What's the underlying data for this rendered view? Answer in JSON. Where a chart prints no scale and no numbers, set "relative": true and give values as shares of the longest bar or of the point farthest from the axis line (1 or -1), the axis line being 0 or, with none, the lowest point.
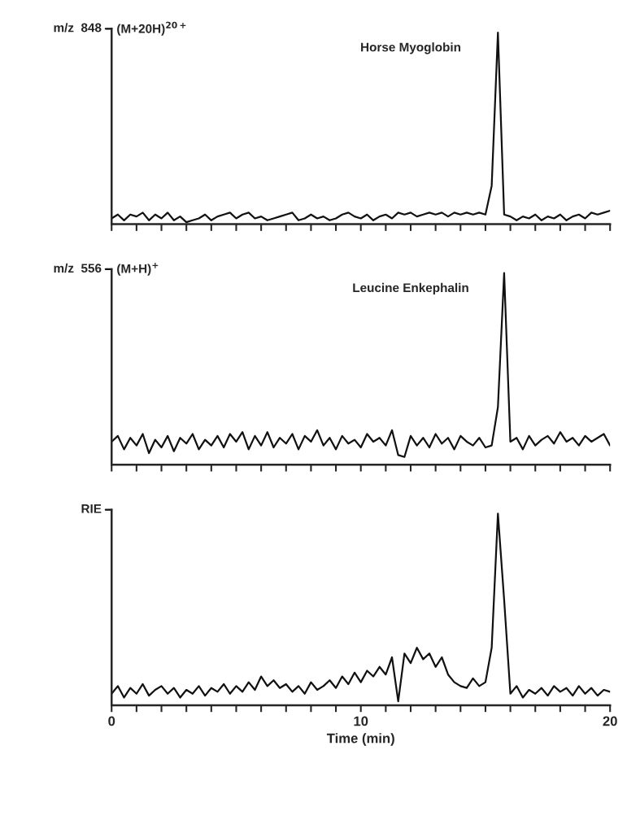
{
  "chart_data": [
    {
      "type": "line",
      "relative": true,
      "color": "#111111",
      "ylabel": "m/z  848",
      "annotations": [
        "(M+20H)$^{20+}$",
        "Horse Myoglobin"
      ],
      "xlim": [
        0,
        20
      ],
      "tick_labels": false,
      "xticks": [
        {
          "value": 0,
          "label": null
        },
        {
          "value": 1,
          "label": null
        },
        {
          "value": 2,
          "label": null
        },
        {
          "value": 3,
          "label": null
        },
        {
          "value": 4,
          "label": null
        },
        {
          "value": 5,
          "label": null
        },
        {
          "value": 6,
          "label": null
        },
        {
          "value": 7,
          "label": null
        },
        {
          "value": 8,
          "label": null
        },
        {
          "value": 9,
          "label": null
        },
        {
          "value": 10,
          "label": null
        },
        {
          "value": 11,
          "label": null
        },
        {
          "value": 12,
          "label": null
        },
        {
          "value": 13,
          "label": null
        },
        {
          "value": 14,
          "label": null
        },
        {
          "value": 15,
          "label": null
        },
        {
          "value": 16,
          "label": null
        },
        {
          "value": 17,
          "label": null
        },
        {
          "value": 18,
          "label": null
        },
        {
          "value": 19,
          "label": null
        },
        {
          "value": 20,
          "label": null
        }
      ],
      "x": [
        0,
        0.25,
        0.5,
        0.75,
        1,
        1.25,
        1.5,
        1.75,
        2,
        2.25,
        2.5,
        2.75,
        3,
        3.25,
        3.5,
        3.75,
        4,
        4.25,
        4.5,
        4.75,
        5,
        5.25,
        5.5,
        5.75,
        6,
        6.25,
        6.5,
        6.75,
        7,
        7.25,
        7.5,
        7.75,
        8,
        8.25,
        8.5,
        8.75,
        9,
        9.25,
        9.5,
        9.75,
        10,
        10.25,
        10.5,
        10.75,
        11,
        11.25,
        11.5,
        11.75,
        12,
        12.25,
        12.5,
        12.75,
        13,
        13.25,
        13.5,
        13.75,
        14,
        14.25,
        14.5,
        14.75,
        15,
        15.25,
        15.5,
        15.75,
        16,
        16.25,
        16.5,
        16.75,
        17,
        17.25,
        17.5,
        17.75,
        18,
        18.25,
        18.5,
        18.75,
        19,
        19.25,
        19.5,
        19.75,
        20
      ],
      "values": [
        0.03,
        0.05,
        0.02,
        0.05,
        0.04,
        0.06,
        0.02,
        0.05,
        0.03,
        0.06,
        0.02,
        0.04,
        0.01,
        0.02,
        0.03,
        0.05,
        0.02,
        0.04,
        0.05,
        0.06,
        0.03,
        0.05,
        0.06,
        0.03,
        0.04,
        0.02,
        0.03,
        0.04,
        0.05,
        0.06,
        0.02,
        0.03,
        0.05,
        0.03,
        0.04,
        0.02,
        0.03,
        0.05,
        0.06,
        0.04,
        0.03,
        0.05,
        0.02,
        0.04,
        0.05,
        0.03,
        0.06,
        0.05,
        0.06,
        0.04,
        0.05,
        0.06,
        0.05,
        0.06,
        0.04,
        0.06,
        0.05,
        0.06,
        0.05,
        0.06,
        0.05,
        0.2,
        1.0,
        0.05,
        0.04,
        0.02,
        0.04,
        0.03,
        0.05,
        0.02,
        0.04,
        0.03,
        0.05,
        0.02,
        0.04,
        0.05,
        0.03,
        0.06,
        0.05,
        0.06,
        0.07
      ]
    },
    {
      "type": "line",
      "relative": true,
      "color": "#111111",
      "ylabel": "m/z  556",
      "annotations": [
        "(M+H)$^{+}$",
        "Leucine Enkephalin"
      ],
      "xlim": [
        0,
        20
      ],
      "tick_labels": false,
      "xticks": [
        {
          "value": 0,
          "label": null
        },
        {
          "value": 1,
          "label": null
        },
        {
          "value": 2,
          "label": null
        },
        {
          "value": 3,
          "label": null
        },
        {
          "value": 4,
          "label": null
        },
        {
          "value": 5,
          "label": null
        },
        {
          "value": 6,
          "label": null
        },
        {
          "value": 7,
          "label": null
        },
        {
          "value": 8,
          "label": null
        },
        {
          "value": 9,
          "label": null
        },
        {
          "value": 10,
          "label": null
        },
        {
          "value": 11,
          "label": null
        },
        {
          "value": 12,
          "label": null
        },
        {
          "value": 13,
          "label": null
        },
        {
          "value": 14,
          "label": null
        },
        {
          "value": 15,
          "label": null
        },
        {
          "value": 16,
          "label": null
        },
        {
          "value": 17,
          "label": null
        },
        {
          "value": 18,
          "label": null
        },
        {
          "value": 19,
          "label": null
        },
        {
          "value": 20,
          "label": null
        }
      ],
      "x": [
        0,
        0.25,
        0.5,
        0.75,
        1,
        1.25,
        1.5,
        1.75,
        2,
        2.25,
        2.5,
        2.75,
        3,
        3.25,
        3.5,
        3.75,
        4,
        4.25,
        4.5,
        4.75,
        5,
        5.25,
        5.5,
        5.75,
        6,
        6.25,
        6.5,
        6.75,
        7,
        7.25,
        7.5,
        7.75,
        8,
        8.25,
        8.5,
        8.75,
        9,
        9.25,
        9.5,
        9.75,
        10,
        10.25,
        10.5,
        10.75,
        11,
        11.25,
        11.5,
        11.75,
        12,
        12.25,
        12.5,
        12.75,
        13,
        13.25,
        13.5,
        13.75,
        14,
        14.25,
        14.5,
        14.75,
        15,
        15.25,
        15.5,
        15.75,
        16,
        16.25,
        16.5,
        16.75,
        17,
        17.25,
        17.5,
        17.75,
        18,
        18.25,
        18.5,
        18.75,
        19,
        19.25,
        19.5,
        19.75,
        20
      ],
      "values": [
        0.12,
        0.15,
        0.08,
        0.14,
        0.1,
        0.16,
        0.06,
        0.13,
        0.09,
        0.15,
        0.07,
        0.14,
        0.11,
        0.16,
        0.08,
        0.13,
        0.1,
        0.15,
        0.09,
        0.16,
        0.12,
        0.17,
        0.08,
        0.15,
        0.1,
        0.17,
        0.09,
        0.14,
        0.11,
        0.16,
        0.08,
        0.15,
        0.12,
        0.18,
        0.1,
        0.14,
        0.08,
        0.15,
        0.11,
        0.13,
        0.09,
        0.16,
        0.12,
        0.14,
        0.1,
        0.18,
        0.05,
        0.04,
        0.15,
        0.1,
        0.14,
        0.09,
        0.16,
        0.11,
        0.14,
        0.08,
        0.15,
        0.12,
        0.1,
        0.14,
        0.09,
        0.1,
        0.3,
        1.0,
        0.12,
        0.14,
        0.08,
        0.15,
        0.1,
        0.13,
        0.15,
        0.11,
        0.17,
        0.12,
        0.14,
        0.1,
        0.15,
        0.12,
        0.14,
        0.16,
        0.1
      ]
    },
    {
      "type": "line",
      "relative": true,
      "color": "#111111",
      "ylabel": "RIE",
      "xlabel": "Time (min)",
      "xlim": [
        0,
        20
      ],
      "tick_labels": "x",
      "xticks": [
        0,
        {
          "value": 1,
          "label": null
        },
        {
          "value": 2,
          "label": null
        },
        {
          "value": 3,
          "label": null
        },
        {
          "value": 4,
          "label": null
        },
        {
          "value": 5,
          "label": null
        },
        {
          "value": 6,
          "label": null
        },
        {
          "value": 7,
          "label": null
        },
        {
          "value": 8,
          "label": null
        },
        {
          "value": 9,
          "label": null
        },
        10,
        {
          "value": 11,
          "label": null
        },
        {
          "value": 12,
          "label": null
        },
        {
          "value": 13,
          "label": null
        },
        {
          "value": 14,
          "label": null
        },
        {
          "value": 15,
          "label": null
        },
        {
          "value": 16,
          "label": null
        },
        {
          "value": 17,
          "label": null
        },
        {
          "value": 18,
          "label": null
        },
        {
          "value": 19,
          "label": null
        },
        20
      ],
      "x": [
        0,
        0.25,
        0.5,
        0.75,
        1,
        1.25,
        1.5,
        1.75,
        2,
        2.25,
        2.5,
        2.75,
        3,
        3.25,
        3.5,
        3.75,
        4,
        4.25,
        4.5,
        4.75,
        5,
        5.25,
        5.5,
        5.75,
        6,
        6.25,
        6.5,
        6.75,
        7,
        7.25,
        7.5,
        7.75,
        8,
        8.25,
        8.5,
        8.75,
        9,
        9.25,
        9.5,
        9.75,
        10,
        10.25,
        10.5,
        10.75,
        11,
        11.25,
        11.5,
        11.75,
        12,
        12.25,
        12.5,
        12.75,
        13,
        13.25,
        13.5,
        13.75,
        14,
        14.25,
        14.5,
        14.75,
        15,
        15.25,
        15.5,
        15.75,
        16,
        16.25,
        16.5,
        16.75,
        17,
        17.25,
        17.5,
        17.75,
        18,
        18.25,
        18.5,
        18.75,
        19,
        19.25,
        19.5,
        19.75,
        20
      ],
      "values": [
        0.06,
        0.1,
        0.04,
        0.09,
        0.06,
        0.11,
        0.05,
        0.08,
        0.1,
        0.06,
        0.09,
        0.04,
        0.08,
        0.06,
        0.1,
        0.05,
        0.09,
        0.07,
        0.11,
        0.06,
        0.1,
        0.07,
        0.12,
        0.08,
        0.15,
        0.1,
        0.13,
        0.09,
        0.11,
        0.07,
        0.1,
        0.06,
        0.12,
        0.08,
        0.1,
        0.13,
        0.09,
        0.15,
        0.11,
        0.17,
        0.12,
        0.18,
        0.15,
        0.2,
        0.16,
        0.25,
        0.02,
        0.27,
        0.22,
        0.3,
        0.24,
        0.27,
        0.2,
        0.25,
        0.16,
        0.12,
        0.1,
        0.09,
        0.14,
        0.1,
        0.12,
        0.3,
        1.0,
        0.55,
        0.06,
        0.1,
        0.04,
        0.08,
        0.06,
        0.09,
        0.05,
        0.1,
        0.07,
        0.09,
        0.05,
        0.1,
        0.06,
        0.09,
        0.05,
        0.08,
        0.07
      ]
    }
  ]
}
